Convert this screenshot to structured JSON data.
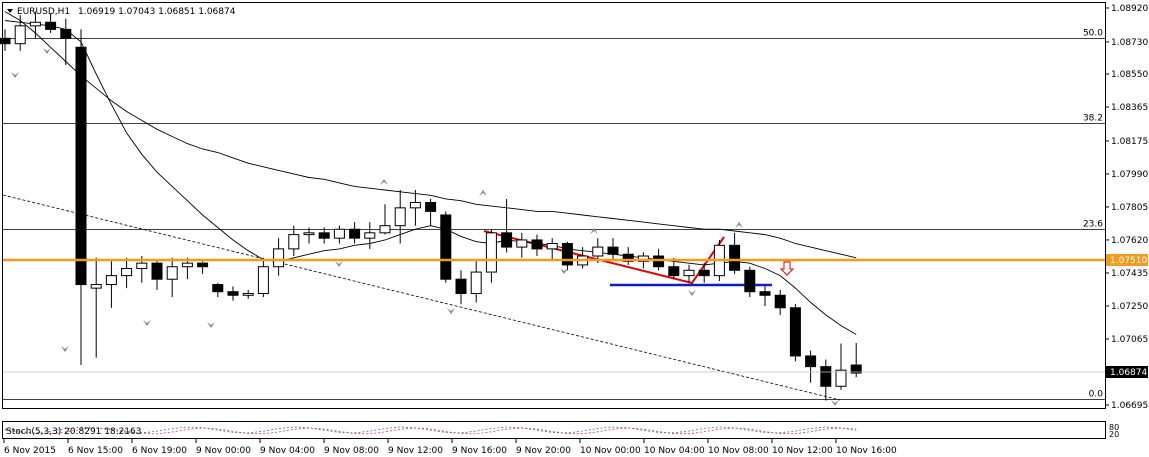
{
  "chart_data": {
    "type": "candlestick",
    "title": "EURUSD,H1",
    "ohlc_label": "1.06919 1.07043 1.06851 1.06874",
    "symbol": "EURUSD",
    "timeframe": "H1",
    "price_axis_ticks": [
      "1.08920",
      "1.08730",
      "1.08550",
      "1.08365",
      "1.08175",
      "1.07990",
      "1.07805",
      "1.07620",
      "1.07435",
      "1.07250",
      "1.07065",
      "1.06695"
    ],
    "current_price": "1.06874",
    "horizontal_line_price": "1.07510",
    "fib_levels": [
      {
        "label": "50.0",
        "price": 1.0875
      },
      {
        "label": "38.2",
        "price": 1.08276
      },
      {
        "label": "23.6",
        "price": 1.07682
      },
      {
        "label": "0.0",
        "price": 1.0673
      }
    ],
    "time_labels": [
      "6 Nov 2015",
      "6 Nov 15:00",
      "6 Nov 19:00",
      "9 Nov 00:00",
      "9 Nov 04:00",
      "9 Nov 08:00",
      "9 Nov 12:00",
      "9 Nov 16:00",
      "9 Nov 20:00",
      "10 Nov 00:00",
      "10 Nov 04:00",
      "10 Nov 08:00",
      "10 Nov 12:00",
      "10 Nov 16:00"
    ],
    "candles": [
      {
        "o": 1.0875,
        "h": 1.088,
        "l": 1.0868,
        "c": 1.0872
      },
      {
        "o": 1.0872,
        "h": 1.0888,
        "l": 1.0868,
        "c": 1.0882
      },
      {
        "o": 1.0882,
        "h": 1.089,
        "l": 1.0875,
        "c": 1.0884
      },
      {
        "o": 1.0884,
        "h": 1.0889,
        "l": 1.0878,
        "c": 1.088
      },
      {
        "o": 1.088,
        "h": 1.0886,
        "l": 1.086,
        "c": 1.0875
      },
      {
        "o": 1.087,
        "h": 1.088,
        "l": 1.0692,
        "c": 1.0737
      },
      {
        "o": 1.0735,
        "h": 1.0752,
        "l": 1.0696,
        "c": 1.0737
      },
      {
        "o": 1.0737,
        "h": 1.075,
        "l": 1.0724,
        "c": 1.0742
      },
      {
        "o": 1.0742,
        "h": 1.0752,
        "l": 1.0735,
        "c": 1.0746
      },
      {
        "o": 1.0746,
        "h": 1.0753,
        "l": 1.0738,
        "c": 1.0749
      },
      {
        "o": 1.0749,
        "h": 1.0751,
        "l": 1.0734,
        "c": 1.074
      },
      {
        "o": 1.074,
        "h": 1.0752,
        "l": 1.073,
        "c": 1.0747
      },
      {
        "o": 1.0747,
        "h": 1.0752,
        "l": 1.074,
        "c": 1.0749
      },
      {
        "o": 1.0749,
        "h": 1.075,
        "l": 1.0743,
        "c": 1.0747
      },
      {
        "o": 1.0737,
        "h": 1.0738,
        "l": 1.073,
        "c": 1.0733
      },
      {
        "o": 1.0733,
        "h": 1.0736,
        "l": 1.0728,
        "c": 1.0731
      },
      {
        "o": 1.0731,
        "h": 1.0734,
        "l": 1.0729,
        "c": 1.0732
      },
      {
        "o": 1.0732,
        "h": 1.0752,
        "l": 1.073,
        "c": 1.0747
      },
      {
        "o": 1.0747,
        "h": 1.0763,
        "l": 1.0742,
        "c": 1.0757
      },
      {
        "o": 1.0757,
        "h": 1.077,
        "l": 1.0753,
        "c": 1.0765
      },
      {
        "o": 1.0765,
        "h": 1.0769,
        "l": 1.076,
        "c": 1.0766
      },
      {
        "o": 1.0766,
        "h": 1.0769,
        "l": 1.076,
        "c": 1.0763
      },
      {
        "o": 1.0763,
        "h": 1.077,
        "l": 1.076,
        "c": 1.0768
      },
      {
        "o": 1.0768,
        "h": 1.0772,
        "l": 1.076,
        "c": 1.0763
      },
      {
        "o": 1.0763,
        "h": 1.0772,
        "l": 1.0757,
        "c": 1.0766
      },
      {
        "o": 1.0766,
        "h": 1.0782,
        "l": 1.0765,
        "c": 1.077
      },
      {
        "o": 1.077,
        "h": 1.079,
        "l": 1.076,
        "c": 1.078
      },
      {
        "o": 1.078,
        "h": 1.079,
        "l": 1.077,
        "c": 1.0783
      },
      {
        "o": 1.0783,
        "h": 1.0785,
        "l": 1.077,
        "c": 1.0778
      },
      {
        "o": 1.0776,
        "h": 1.0778,
        "l": 1.0738,
        "c": 1.074
      },
      {
        "o": 1.074,
        "h": 1.0745,
        "l": 1.0726,
        "c": 1.0732
      },
      {
        "o": 1.0732,
        "h": 1.075,
        "l": 1.0727,
        "c": 1.0744
      },
      {
        "o": 1.0744,
        "h": 1.0768,
        "l": 1.0738,
        "c": 1.0766
      },
      {
        "o": 1.0766,
        "h": 1.0785,
        "l": 1.0755,
        "c": 1.0758
      },
      {
        "o": 1.0758,
        "h": 1.0766,
        "l": 1.0752,
        "c": 1.0762
      },
      {
        "o": 1.0762,
        "h": 1.0765,
        "l": 1.0753,
        "c": 1.0757
      },
      {
        "o": 1.0757,
        "h": 1.0763,
        "l": 1.075,
        "c": 1.076
      },
      {
        "o": 1.076,
        "h": 1.0761,
        "l": 1.0745,
        "c": 1.0748
      },
      {
        "o": 1.0748,
        "h": 1.0758,
        "l": 1.0746,
        "c": 1.0753
      },
      {
        "o": 1.0753,
        "h": 1.0763,
        "l": 1.0749,
        "c": 1.0758
      },
      {
        "o": 1.0758,
        "h": 1.0763,
        "l": 1.0751,
        "c": 1.0754
      },
      {
        "o": 1.0754,
        "h": 1.0758,
        "l": 1.0748,
        "c": 1.075
      },
      {
        "o": 1.075,
        "h": 1.0755,
        "l": 1.0746,
        "c": 1.0753
      },
      {
        "o": 1.0753,
        "h": 1.0757,
        "l": 1.0745,
        "c": 1.0747
      },
      {
        "o": 1.0747,
        "h": 1.0752,
        "l": 1.074,
        "c": 1.0742
      },
      {
        "o": 1.0742,
        "h": 1.0748,
        "l": 1.0738,
        "c": 1.0745
      },
      {
        "o": 1.0745,
        "h": 1.0749,
        "l": 1.0738,
        "c": 1.0742
      },
      {
        "o": 1.0742,
        "h": 1.0762,
        "l": 1.0739,
        "c": 1.0759
      },
      {
        "o": 1.0759,
        "h": 1.0766,
        "l": 1.0743,
        "c": 1.0745
      },
      {
        "o": 1.0745,
        "h": 1.0747,
        "l": 1.073,
        "c": 1.0733
      },
      {
        "o": 1.0733,
        "h": 1.0736,
        "l": 1.0725,
        "c": 1.0731
      },
      {
        "o": 1.0731,
        "h": 1.0734,
        "l": 1.072,
        "c": 1.0724
      },
      {
        "o": 1.0724,
        "h": 1.0726,
        "l": 1.0694,
        "c": 1.0697
      },
      {
        "o": 1.0697,
        "h": 1.07,
        "l": 1.0682,
        "c": 1.0691
      },
      {
        "o": 1.0691,
        "h": 1.0695,
        "l": 1.0672,
        "c": 1.068
      },
      {
        "o": 1.068,
        "h": 1.0704,
        "l": 1.0678,
        "c": 1.0689
      },
      {
        "o": 1.06919,
        "h": 1.07043,
        "l": 1.06851,
        "c": 1.06874
      }
    ],
    "ma_slow": [
      1.089,
      1.0885,
      1.0878,
      1.087,
      1.0862,
      1.0854,
      1.0847,
      1.084,
      1.0834,
      1.0829,
      1.0824,
      1.082,
      1.0816,
      1.0813,
      1.0811,
      1.0808,
      1.0805,
      1.0803,
      1.0801,
      1.0799,
      1.0797,
      1.0796,
      1.0794,
      1.0792,
      1.0791,
      1.079,
      1.0789,
      1.0788,
      1.0787,
      1.0785,
      1.0784,
      1.0782,
      1.0781,
      1.078,
      1.0779,
      1.0778,
      1.0778,
      1.0777,
      1.0776,
      1.0775,
      1.0774,
      1.0773,
      1.0772,
      1.0771,
      1.077,
      1.0769,
      1.0768,
      1.0768,
      1.0767,
      1.0766,
      1.0765,
      1.0763,
      1.076,
      1.0758,
      1.0756,
      1.0754,
      1.0752
    ],
    "ma_fast": [
      1.0885,
      1.0884,
      1.0883,
      1.0882,
      1.088,
      1.0873,
      1.0855,
      1.0838,
      1.0822,
      1.081,
      1.08,
      1.0792,
      1.0784,
      1.0776,
      1.0769,
      1.0762,
      1.0756,
      1.0751,
      1.075,
      1.0752,
      1.0754,
      1.0756,
      1.0757,
      1.0759,
      1.076,
      1.0762,
      1.0765,
      1.0768,
      1.077,
      1.0768,
      1.0764,
      1.0761,
      1.076,
      1.0762,
      1.0761,
      1.076,
      1.0759,
      1.0757,
      1.0756,
      1.0755,
      1.0754,
      1.0753,
      1.0752,
      1.0751,
      1.075,
      1.0749,
      1.0748,
      1.0749,
      1.075,
      1.0749,
      1.0746,
      1.0742,
      1.0735,
      1.0727,
      1.072,
      1.0714,
      1.0709
    ],
    "indicator_label": "Stoch(5,3,3) 20.8291 18.2163",
    "indicator_levels": [
      "80",
      "20"
    ]
  }
}
